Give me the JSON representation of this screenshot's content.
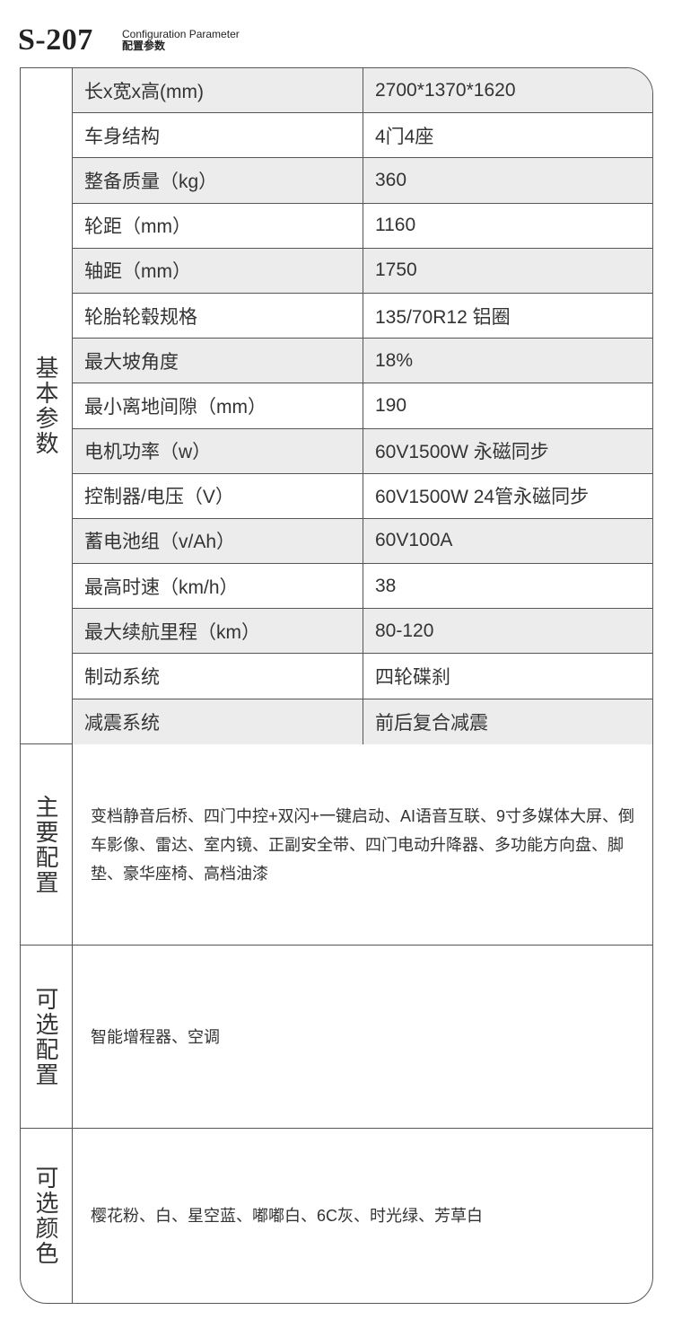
{
  "header": {
    "model": "S-207",
    "subtitle_en": "Configuration Parameter",
    "subtitle_cn": "配置参数"
  },
  "basic": {
    "label": "基本参数",
    "rows": [
      {
        "key": "长x宽x高(mm)",
        "value": "2700*1370*1620"
      },
      {
        "key": "车身结构",
        "value": "4门4座"
      },
      {
        "key": "整备质量（kg）",
        "value": "360"
      },
      {
        "key": "轮距（mm）",
        "value": "1160"
      },
      {
        "key": "轴距（mm）",
        "value": "1750"
      },
      {
        "key": "轮胎轮毂规格",
        "value": "135/70R12 铝圈"
      },
      {
        "key": "最大坡角度",
        "value": "18%"
      },
      {
        "key": "最小离地间隙（mm）",
        "value": "190"
      },
      {
        "key": "电机功率（w）",
        "value": "60V1500W 永磁同步"
      },
      {
        "key": "控制器/电压（V）",
        "value": "60V1500W 24管永磁同步"
      },
      {
        "key": "蓄电池组（v/Ah）",
        "value": "60V100A"
      },
      {
        "key": "最高时速（km/h）",
        "value": "38"
      },
      {
        "key": "最大续航里程（km）",
        "value": "80-120"
      },
      {
        "key": "制动系统",
        "value": "四轮碟刹"
      },
      {
        "key": "减震系统",
        "value": "前后复合减震"
      }
    ]
  },
  "main_config": {
    "label": "主要配置",
    "text": "变档静音后桥、四门中控+双闪+一键启动、AI语音互联、9寸多媒体大屏、倒车影像、雷达、室内镜、正副安全带、四门电动升降器、多功能方向盘、脚垫、豪华座椅、高档油漆"
  },
  "optional_config": {
    "label": "可选配置",
    "text": "智能增程器、空调"
  },
  "colors": {
    "label": "可选颜色",
    "text": "樱花粉、白、星空蓝、嘟嘟白、6C灰、时光绿、芳草白"
  },
  "style": {
    "shade_color": "#ececec",
    "border_color": "#555555"
  }
}
